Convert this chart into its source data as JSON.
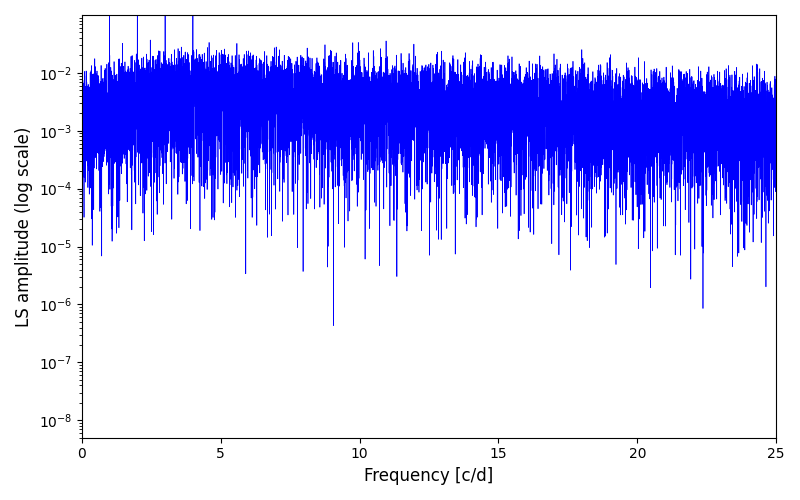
{
  "xlabel": "Frequency [c/d]",
  "ylabel": "LS amplitude (log scale)",
  "line_color": "#0000ff",
  "line_width": 0.5,
  "xlim": [
    0,
    25
  ],
  "ylim": [
    5e-09,
    0.1
  ],
  "xticks": [
    0,
    5,
    10,
    15,
    20,
    25
  ],
  "ytick_values": [
    1e-08,
    1e-07,
    1e-06,
    1e-05,
    0.0001,
    0.001,
    0.01
  ],
  "figsize": [
    8.0,
    5.0
  ],
  "dpi": 100,
  "background_color": "#ffffff",
  "N_points": 12000,
  "freq_max": 25.0,
  "noise_seed": 42
}
